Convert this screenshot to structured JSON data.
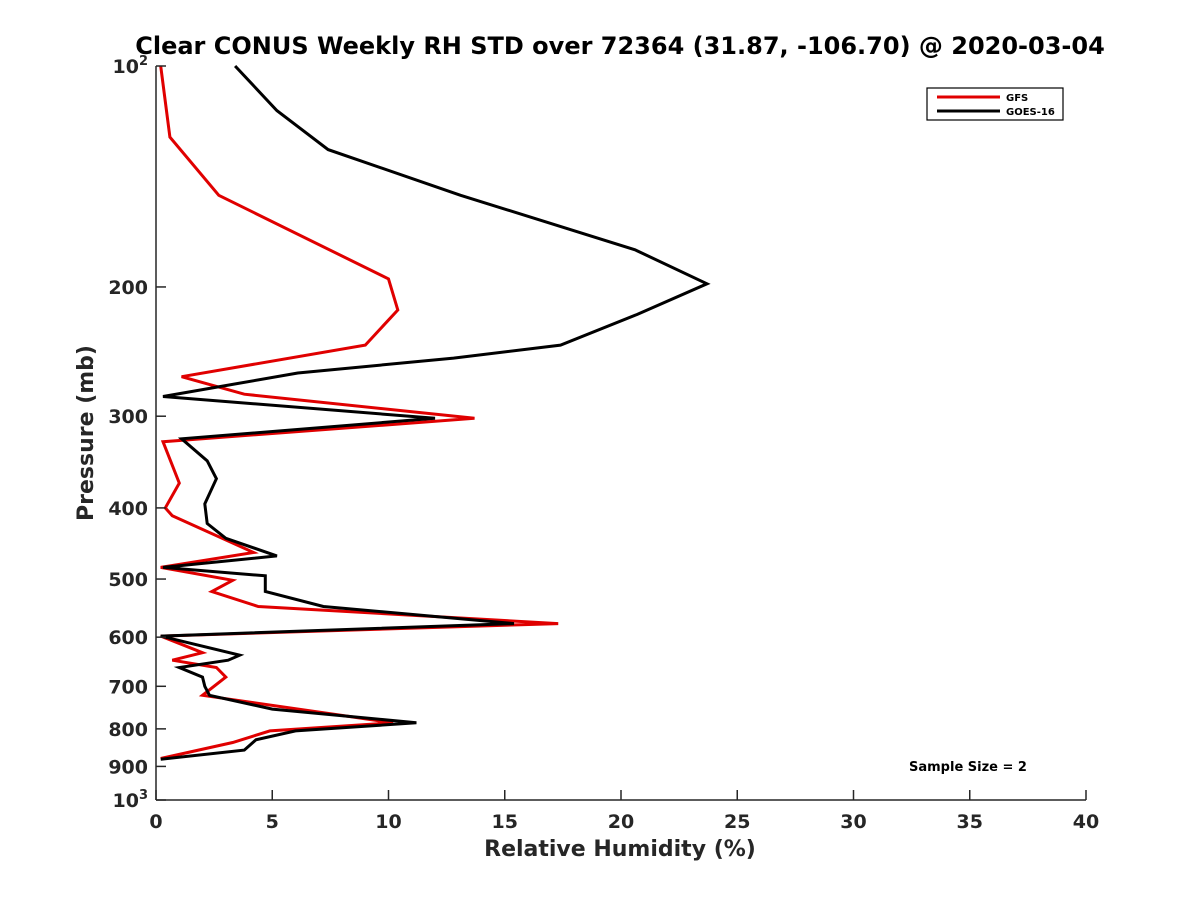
{
  "chart_data": {
    "type": "line",
    "title": "Clear CONUS Weekly RH STD over 72364 (31.87, -106.70) @ 2020-03-04",
    "xlabel": "Relative Humidity (%)",
    "ylabel": "Pressure (mb)",
    "xlim": [
      0,
      40
    ],
    "ylim": [
      100,
      1000
    ],
    "y_scale": "log",
    "y_reversed": true,
    "x_ticks": [
      "0",
      "5",
      "10",
      "15",
      "20",
      "25",
      "30",
      "35",
      "40"
    ],
    "y_ticks": [
      {
        "value": 100,
        "base": "10",
        "exp": "2"
      },
      {
        "value": 200,
        "label": "200"
      },
      {
        "value": 300,
        "label": "300"
      },
      {
        "value": 400,
        "label": "400"
      },
      {
        "value": 500,
        "label": "500"
      },
      {
        "value": 600,
        "label": "600"
      },
      {
        "value": 700,
        "label": "700"
      },
      {
        "value": 800,
        "label": "800"
      },
      {
        "value": 900,
        "label": "900"
      },
      {
        "value": 1000,
        "base": "10",
        "exp": "3"
      }
    ],
    "legend_position": "top-right",
    "grid": false,
    "annotation": "Sample Size = 2",
    "series": [
      {
        "name": "GFS",
        "color": "#e00000",
        "points": [
          [
            0.2,
            100
          ],
          [
            0.6,
            125
          ],
          [
            2.7,
            150
          ],
          [
            10.0,
            195
          ],
          [
            10.4,
            215
          ],
          [
            9.0,
            240
          ],
          [
            1.1,
            265
          ],
          [
            3.8,
            280
          ],
          [
            13.7,
            302
          ],
          [
            0.3,
            325
          ],
          [
            1.0,
            370
          ],
          [
            0.4,
            400
          ],
          [
            0.7,
            410
          ],
          [
            4.2,
            460
          ],
          [
            0.2,
            482
          ],
          [
            3.3,
            502
          ],
          [
            2.4,
            520
          ],
          [
            4.4,
            545
          ],
          [
            17.3,
            575
          ],
          [
            0.2,
            598
          ],
          [
            2.0,
            630
          ],
          [
            0.7,
            645
          ],
          [
            2.6,
            660
          ],
          [
            3.0,
            680
          ],
          [
            2.0,
            720
          ],
          [
            10.2,
            785
          ],
          [
            4.9,
            805
          ],
          [
            3.3,
            835
          ],
          [
            0.2,
            878
          ]
        ]
      },
      {
        "name": "GOES-16",
        "color": "#000000",
        "points": [
          [
            3.4,
            100
          ],
          [
            5.2,
            115
          ],
          [
            7.4,
            130
          ],
          [
            13.1,
            150
          ],
          [
            20.6,
            178
          ],
          [
            23.7,
            198
          ],
          [
            20.7,
            218
          ],
          [
            17.4,
            240
          ],
          [
            12.8,
            250
          ],
          [
            6.1,
            262
          ],
          [
            0.3,
            282
          ],
          [
            12.0,
            302
          ],
          [
            1.1,
            322
          ],
          [
            2.2,
            345
          ],
          [
            2.6,
            365
          ],
          [
            2.1,
            395
          ],
          [
            2.2,
            420
          ],
          [
            3.0,
            440
          ],
          [
            5.2,
            465
          ],
          [
            0.3,
            482
          ],
          [
            4.7,
            495
          ],
          [
            4.7,
            520
          ],
          [
            7.2,
            545
          ],
          [
            15.4,
            575
          ],
          [
            0.2,
            598
          ],
          [
            3.6,
            635
          ],
          [
            3.1,
            645
          ],
          [
            1.0,
            660
          ],
          [
            2.0,
            680
          ],
          [
            2.1,
            700
          ],
          [
            2.3,
            720
          ],
          [
            5.0,
            752
          ],
          [
            11.2,
            785
          ],
          [
            6.0,
            805
          ],
          [
            4.3,
            828
          ],
          [
            3.8,
            855
          ],
          [
            0.2,
            880
          ]
        ]
      }
    ]
  }
}
